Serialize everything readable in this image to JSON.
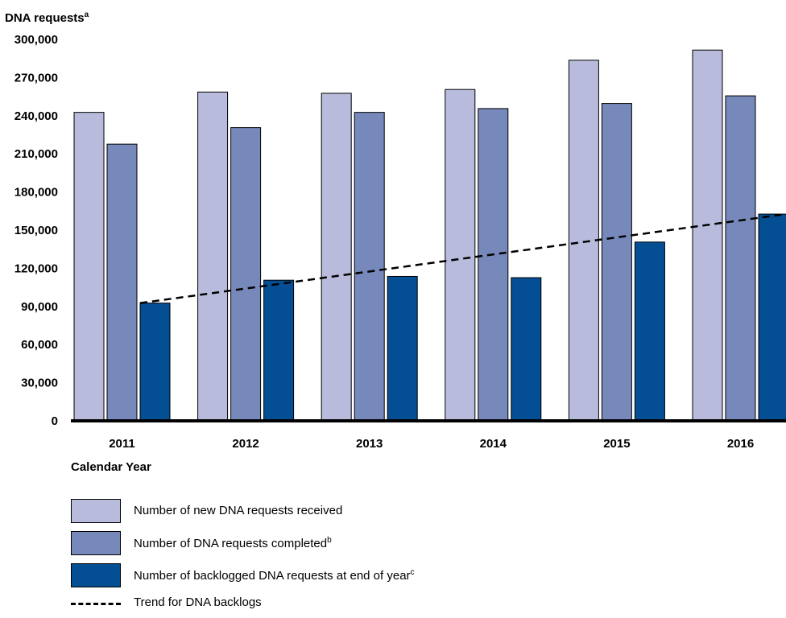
{
  "chart_data": {
    "type": "bar",
    "ylabel": "DNA requests",
    "ylabel_footnote": "a",
    "xlabel": "Calendar Year",
    "categories": [
      "2011",
      "2012",
      "2013",
      "2014",
      "2015",
      "2016"
    ],
    "ylim": [
      0,
      300000
    ],
    "yticks": [
      "0",
      "30,000",
      "60,000",
      "90,000",
      "120,000",
      "150,000",
      "180,000",
      "210,000",
      "240,000",
      "270,000",
      "300,000"
    ],
    "ytick_values": [
      0,
      30000,
      60000,
      90000,
      120000,
      150000,
      180000,
      210000,
      240000,
      270000,
      300000
    ],
    "grid": false,
    "legend_position": "bottom",
    "series": [
      {
        "name": "Number of new DNA requests received",
        "footnote": "",
        "color": "#b8bbdb",
        "values": [
          242000,
          258000,
          257000,
          260000,
          283000,
          291000
        ]
      },
      {
        "name": "Number of DNA requests completed",
        "footnote": "b",
        "color": "#7789bb",
        "values": [
          217000,
          230000,
          242000,
          245000,
          249000,
          255000
        ]
      },
      {
        "name": "Number of backlogged DNA requests at end of year",
        "footnote": "c",
        "color": "#044e93",
        "values": [
          92000,
          110000,
          113000,
          112000,
          140000,
          162000
        ]
      }
    ],
    "trend": {
      "name": "Trend for DNA backlogs",
      "style": "dashed",
      "color": "#000000",
      "start": 92000,
      "end": 162000
    }
  }
}
